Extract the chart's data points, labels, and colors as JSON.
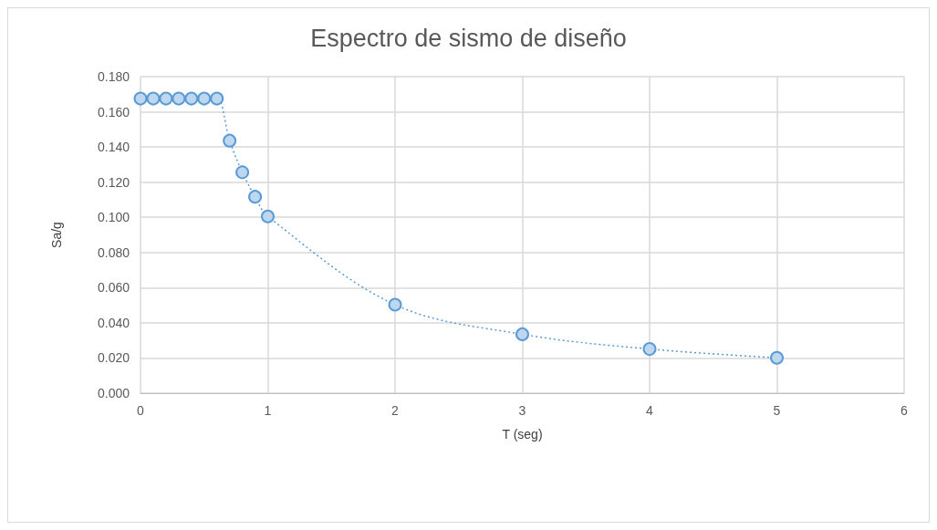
{
  "chart_data": {
    "type": "line",
    "title": "Espectro de sismo de diseño",
    "xlabel": "T (seg)",
    "ylabel": "Sa/g",
    "x": [
      0,
      0.1,
      0.2,
      0.3,
      0.4,
      0.5,
      0.6,
      0.7,
      0.8,
      0.9,
      1,
      2,
      3,
      4,
      5
    ],
    "series": [
      {
        "color": "#5b9bd5",
        "values": [
          0.1675,
          0.1675,
          0.1675,
          0.1675,
          0.1675,
          0.1675,
          0.1675,
          0.1436,
          0.1256,
          0.1117,
          0.1005,
          0.0503,
          0.0335,
          0.0251,
          0.0201
        ]
      }
    ],
    "xlim": [
      0,
      6
    ],
    "xticks": [
      0,
      1,
      2,
      3,
      4,
      5,
      6
    ],
    "ylim": [
      0,
      0.18
    ],
    "yticks": [
      {
        "value": 0,
        "label": "0.000"
      },
      {
        "value": 0.02,
        "label": "0.020"
      },
      {
        "value": 0.04,
        "label": "0.040"
      },
      {
        "value": 0.06,
        "label": "0.060"
      },
      {
        "value": 0.08,
        "label": "0.080"
      },
      {
        "value": 0.1,
        "label": "0.100"
      },
      {
        "value": 0.12,
        "label": "0.120"
      },
      {
        "value": 0.14,
        "label": "0.140"
      },
      {
        "value": 0.16,
        "label": "0.160"
      },
      {
        "value": 0.18,
        "label": "0.180"
      }
    ],
    "grid": true,
    "marker": "circle",
    "line_style": "dotted"
  }
}
